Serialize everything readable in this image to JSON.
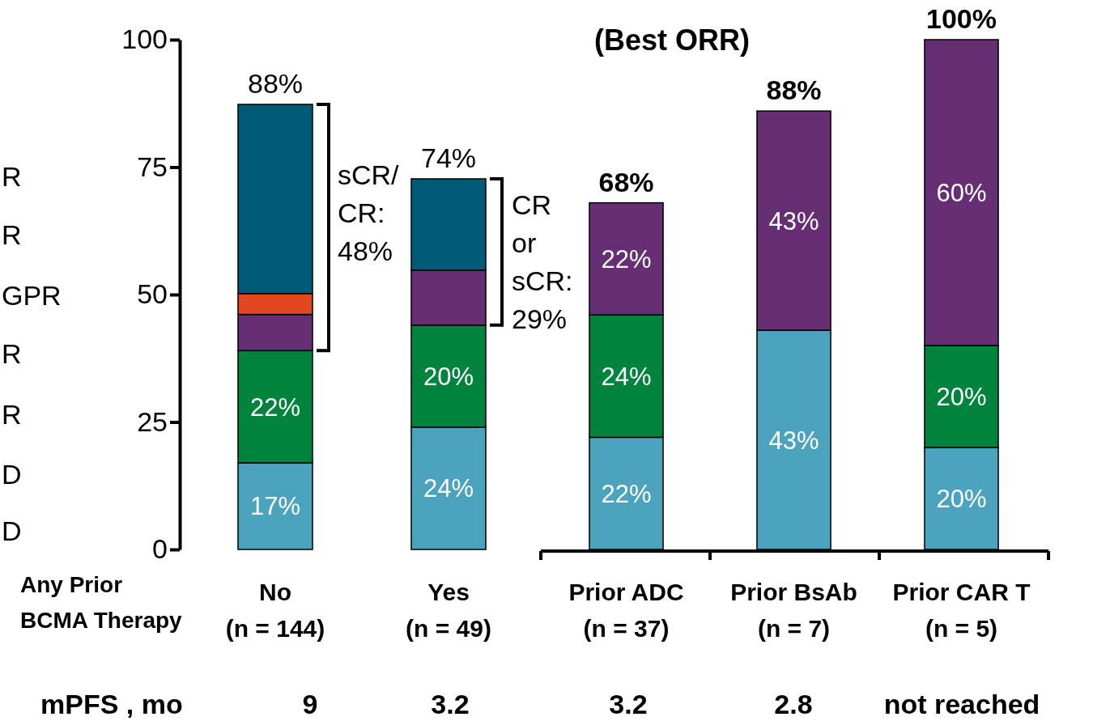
{
  "chart_data": [
    {
      "type": "bar",
      "stacked": true,
      "categories": [
        "No\n(n = 144)",
        "Yes\n(n = 49)"
      ],
      "xlabel": "Any Prior\nBCMA Therapy",
      "ylim": [
        0,
        100
      ],
      "yticks": [
        0,
        25,
        50,
        75,
        100
      ],
      "series": [
        {
          "color": "#4ba3be",
          "values": [
            17,
            24
          ],
          "value_labels": [
            "17%",
            "24%"
          ]
        },
        {
          "color": "#00843d",
          "values": [
            22,
            20
          ],
          "value_labels": [
            "22%",
            "20%"
          ]
        },
        {
          "color": "#672f73",
          "values": [
            7.1,
            10.8
          ]
        },
        {
          "color": "#e1481f",
          "values": [
            4.1,
            null
          ]
        },
        {
          "color": "#005a78",
          "values": [
            37.1,
            17.9
          ]
        }
      ],
      "totals": [
        "88%",
        "74%"
      ],
      "annotations": [
        "sCR/\nCR:\n48%",
        "CR\nor\nsCR:\n29%",
        "R",
        "R",
        "GPR",
        "R",
        "R",
        "D",
        "D",
        "mPFS , mo",
        "9",
        "3.2"
      ]
    },
    {
      "type": "bar",
      "stacked": true,
      "title": "(Best ORR)",
      "categories": [
        "Prior ADC\n(n = 37)",
        "Prior BsAb\n(n = 7)",
        "Prior CAR T\n(n = 5)"
      ],
      "ylim": [
        0,
        100
      ],
      "tick_labels": "x",
      "series": [
        {
          "color": "#4ba3be",
          "values": [
            22,
            43,
            20
          ],
          "value_labels": [
            "22%",
            "43%",
            "20%"
          ]
        },
        {
          "color": "#00843d",
          "values": [
            24,
            null,
            20
          ],
          "value_labels": [
            "24%",
            null,
            "20%"
          ]
        },
        {
          "color": "#672f73",
          "values": [
            22,
            43,
            60
          ],
          "value_labels": [
            "22%",
            "43%",
            "60%"
          ]
        }
      ],
      "totals": [
        "68%",
        "88%",
        "100%"
      ],
      "annotations": [
        "3.2",
        "2.8",
        "not reached"
      ]
    }
  ]
}
